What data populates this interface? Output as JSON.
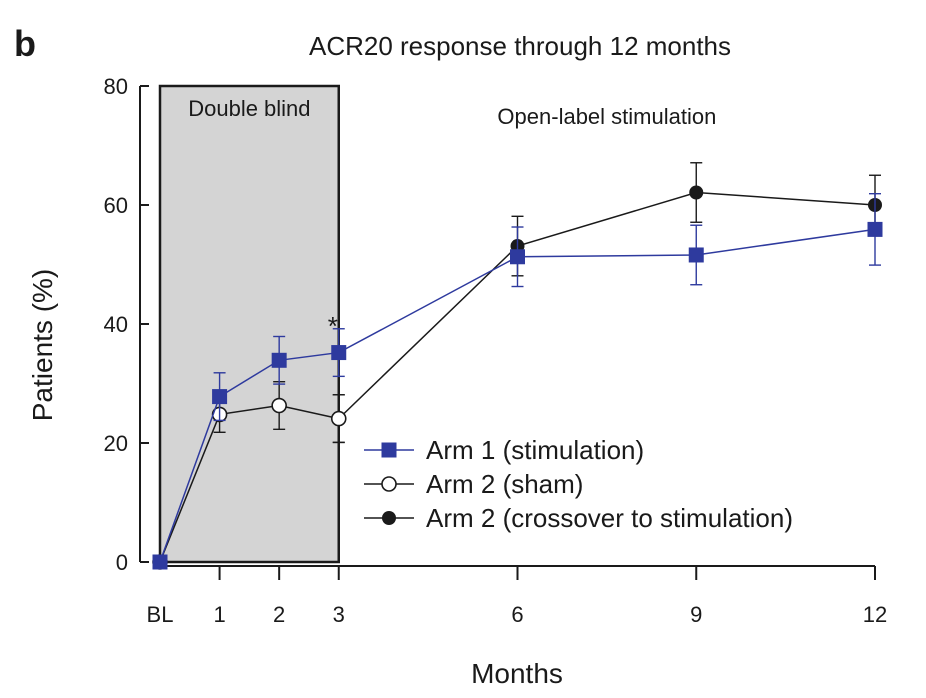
{
  "panel_letter": "b",
  "chart_data": {
    "type": "line",
    "title": "ACR20 response through 12 months",
    "xlabel": "Months",
    "ylabel": "Patients (%)",
    "ylim": [
      0,
      80
    ],
    "yticks": [
      0,
      20,
      40,
      60,
      80
    ],
    "x_ticks": [
      {
        "value": 0,
        "label": "BL"
      },
      {
        "value": 1,
        "label": "1"
      },
      {
        "value": 2,
        "label": "2"
      },
      {
        "value": 3,
        "label": "3"
      },
      {
        "value": 6,
        "label": "6"
      },
      {
        "value": 9,
        "label": "9"
      },
      {
        "value": 12,
        "label": "12"
      }
    ],
    "shaded_region": {
      "x_start": 0,
      "x_end": 3,
      "label": "Double blind"
    },
    "annotations": {
      "open_label": {
        "text": "Open-label stimulation",
        "x": 7.5,
        "y": 75
      },
      "significance": {
        "text": "*",
        "x": 2.9,
        "y": 40.5
      }
    },
    "legend_position": "lower-right",
    "series": [
      {
        "name": "Arm 1 (stimulation)",
        "color": "#2e3a9e",
        "marker": "square",
        "x": [
          0,
          1,
          2,
          3,
          6,
          9,
          12
        ],
        "y": [
          0,
          27.8,
          33.9,
          35.2,
          51.3,
          51.6,
          55.9
        ],
        "err": [
          0,
          4,
          4,
          4,
          5,
          5,
          6
        ]
      },
      {
        "name": "Arm 2 (sham)",
        "color": "#1a1a1a",
        "marker": "open-circle",
        "x": [
          0,
          1,
          2,
          3
        ],
        "y": [
          0,
          24.8,
          26.3,
          24.1
        ],
        "err": [
          0,
          3,
          4,
          4
        ]
      },
      {
        "name": "Arm 2 (crossover to stimulation)",
        "color": "#1a1a1a",
        "marker": "filled-circle",
        "x": [
          3,
          6,
          9,
          12
        ],
        "y": [
          24.1,
          53.1,
          62.1,
          60.0
        ],
        "err": [
          4,
          5,
          5,
          5
        ]
      }
    ]
  }
}
